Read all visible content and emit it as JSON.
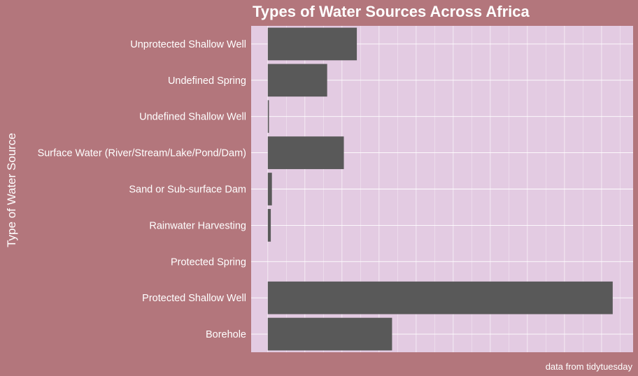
{
  "chart_data": {
    "type": "bar",
    "orientation": "horizontal",
    "title": "Types of Water Sources Across Africa",
    "xlabel": "",
    "ylabel": "Type of Water Source",
    "caption": "data from tidytuesday",
    "categories": [
      "Unprotected Shallow Well",
      "Undefined Spring",
      "Undefined Shallow Well",
      "Surface Water (River/Stream/Lake/Pond/Dam)",
      "Sand or Sub-surface Dam",
      "Rainwater Harvesting",
      "Protected Spring",
      "Protected Shallow Well",
      "Borehole"
    ],
    "values": [
      24,
      16,
      0.3,
      20.5,
      1.1,
      0.8,
      0,
      93,
      33.5
    ],
    "xlim": [
      -4.5,
      98.5
    ],
    "grid": true,
    "x_tick_labels_shown": false,
    "colors": {
      "background": "#b3767c",
      "panel": "#e3cbe2",
      "bar": "#595959",
      "grid": "#ffffff",
      "text": "#ffffff"
    }
  }
}
